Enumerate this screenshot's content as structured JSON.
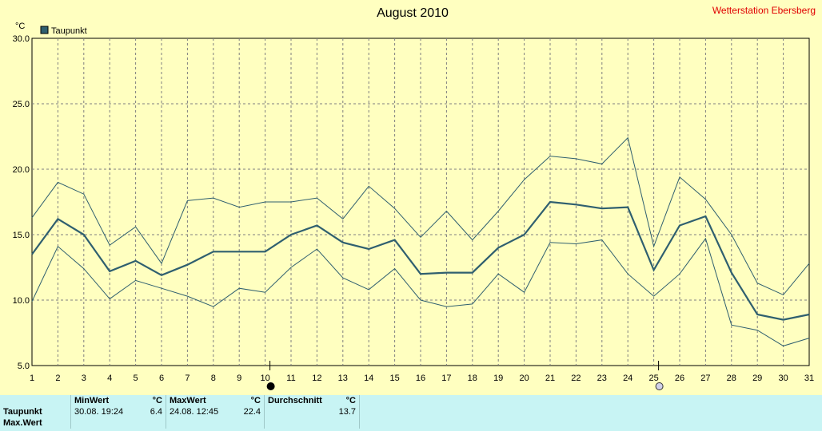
{
  "header": {
    "title": "August 2010",
    "station": "Wetterstation Ebersberg"
  },
  "legend": {
    "label": "Taupunkt",
    "color": "#2f5f6f"
  },
  "y_unit": "°C",
  "colors": {
    "background": "#ffffc0",
    "line": "#2f5f6f",
    "grid": "#7f7f7f",
    "station": "#e00000",
    "panel": "#c8f4f4"
  },
  "chart_data": {
    "type": "line",
    "title": "August 2010",
    "xlabel": "",
    "ylabel": "°C",
    "x": [
      1,
      2,
      3,
      4,
      5,
      6,
      7,
      8,
      9,
      10,
      11,
      12,
      13,
      14,
      15,
      16,
      17,
      18,
      19,
      20,
      21,
      22,
      23,
      24,
      25,
      26,
      27,
      28,
      29,
      30,
      31
    ],
    "xlim": [
      1,
      31
    ],
    "ylim": [
      5,
      30
    ],
    "yticks": [
      "5.0",
      "10.0",
      "15.0",
      "20.0",
      "25.0",
      "30.0"
    ],
    "grid": true,
    "legend_position": "top-left",
    "series": [
      {
        "name": "Taupunkt",
        "role": "mean",
        "values": [
          13.5,
          16.2,
          15.0,
          12.2,
          13.0,
          11.9,
          12.7,
          13.7,
          13.7,
          13.7,
          15.0,
          15.7,
          14.4,
          13.9,
          14.6,
          12.0,
          12.1,
          12.1,
          14.0,
          15.0,
          17.5,
          17.3,
          17.0,
          17.1,
          12.3,
          15.7,
          16.4,
          12.1,
          8.9,
          8.5,
          8.9
        ]
      },
      {
        "role": "max",
        "values": [
          16.3,
          19.0,
          18.1,
          14.2,
          15.6,
          12.8,
          17.6,
          17.8,
          17.1,
          17.5,
          17.5,
          17.8,
          16.2,
          18.7,
          17.0,
          14.8,
          16.8,
          14.6,
          16.8,
          19.2,
          21.0,
          20.8,
          20.4,
          22.4,
          14.1,
          19.4,
          17.7,
          15.0,
          11.3,
          10.4,
          12.8
        ]
      },
      {
        "role": "min",
        "values": [
          9.9,
          14.1,
          12.4,
          10.1,
          11.5,
          10.9,
          10.3,
          9.5,
          10.9,
          10.6,
          12.5,
          13.9,
          11.7,
          10.8,
          12.4,
          10.0,
          9.5,
          9.7,
          12.0,
          10.6,
          14.4,
          14.3,
          14.6,
          12.0,
          10.3,
          12.0,
          14.7,
          8.1,
          7.7,
          6.5,
          7.1
        ]
      }
    ],
    "markers": [
      {
        "day": 10,
        "symbol": "new-moon"
      },
      {
        "day": 25,
        "symbol": "full-moon"
      }
    ]
  },
  "stats": {
    "columns": [
      "MinWert",
      "°C",
      "MaxWert",
      "°C",
      "Durchschnitt",
      "°C"
    ],
    "rows": [
      {
        "label": "Taupunkt",
        "min_date": "30.08.  19:24",
        "min_value": "6.4",
        "max_date": "24.08.  12:45",
        "max_value": "22.4",
        "avg_value": "13.7"
      },
      {
        "label": "Max.Wert"
      }
    ]
  }
}
